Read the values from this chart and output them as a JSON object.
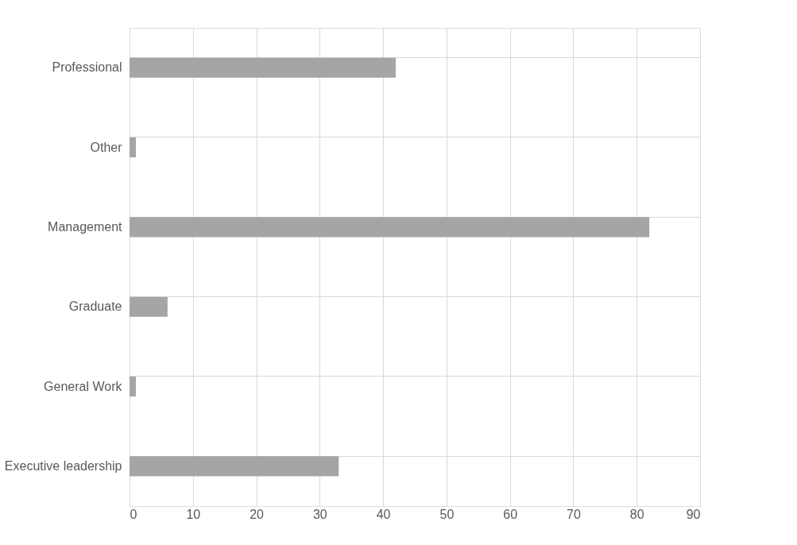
{
  "chart_data": {
    "type": "bar",
    "orientation": "horizontal",
    "categories": [
      "Professional",
      "Other",
      "Management",
      "Graduate",
      "General Work",
      "Executive leadership"
    ],
    "values": [
      42,
      1,
      82,
      6,
      1,
      33
    ],
    "color": "#a5a5a5",
    "xlim": [
      0,
      90
    ],
    "xticks": [
      0,
      10,
      20,
      30,
      40,
      50,
      60,
      70,
      80,
      90
    ],
    "grid": true
  }
}
